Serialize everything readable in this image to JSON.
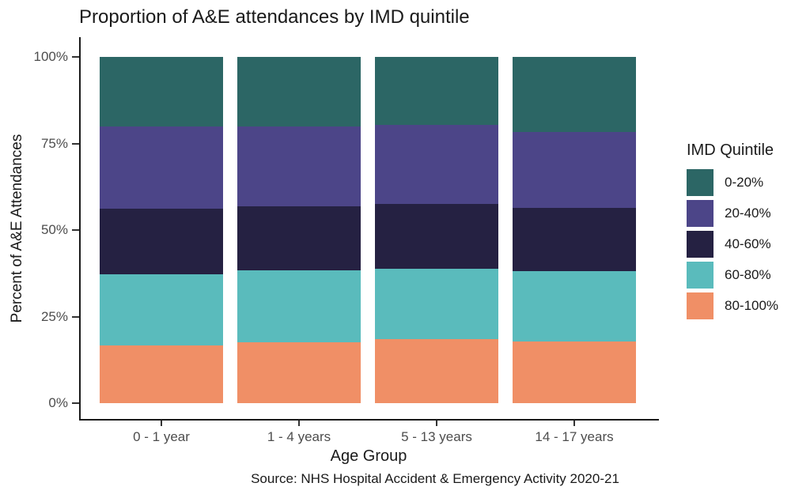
{
  "source": "Source: NHS Hospital Accident & Emergency Activity 2020-21",
  "colors": {
    "background": "#FFFFFF",
    "axis_line": "#1A1A1A",
    "tick_mark": "#333333",
    "axis_text": "#4D4D4D",
    "text": "#1A1A1A"
  },
  "chart_data": {
    "type": "bar",
    "stacked": true,
    "orientation": "vertical",
    "title": "Proportion of A&E attendances by IMD quintile",
    "xlabel": "Age Group",
    "ylabel": "Percent of A&E Attendances",
    "ylim": [
      0,
      100
    ],
    "y_unit": "%",
    "grid": false,
    "categories": [
      "0 - 1 year",
      "1 - 4 years",
      "5 - 13 years",
      "14 - 17 years"
    ],
    "series": [
      {
        "name": "0-20%",
        "color": "#2C6665",
        "values": [
          20.0,
          20.0,
          19.6,
          21.6
        ]
      },
      {
        "name": "20-40%",
        "color": "#4C4588",
        "values": [
          23.9,
          23.2,
          22.8,
          22.0
        ]
      },
      {
        "name": "40-60%",
        "color": "#252142",
        "values": [
          18.8,
          18.4,
          18.8,
          18.3
        ]
      },
      {
        "name": "60-80%",
        "color": "#5ABBBC",
        "values": [
          20.7,
          20.8,
          20.3,
          20.3
        ]
      },
      {
        "name": "80-100%",
        "color": "#F08F66",
        "values": [
          16.6,
          17.6,
          18.5,
          17.8
        ]
      }
    ],
    "stack_order_bottom_to_top": [
      "80-100%",
      "60-80%",
      "40-60%",
      "20-40%",
      "0-20%"
    ],
    "y_ticks": [
      {
        "value": 0,
        "label": "0%"
      },
      {
        "value": 25,
        "label": "25%"
      },
      {
        "value": 50,
        "label": "50%"
      },
      {
        "value": 75,
        "label": "75%"
      },
      {
        "value": 100,
        "label": "100%"
      }
    ],
    "legend": {
      "title": "IMD Quintile",
      "position": "right",
      "entries": [
        "0-20%",
        "20-40%",
        "40-60%",
        "60-80%",
        "80-100%"
      ]
    }
  }
}
